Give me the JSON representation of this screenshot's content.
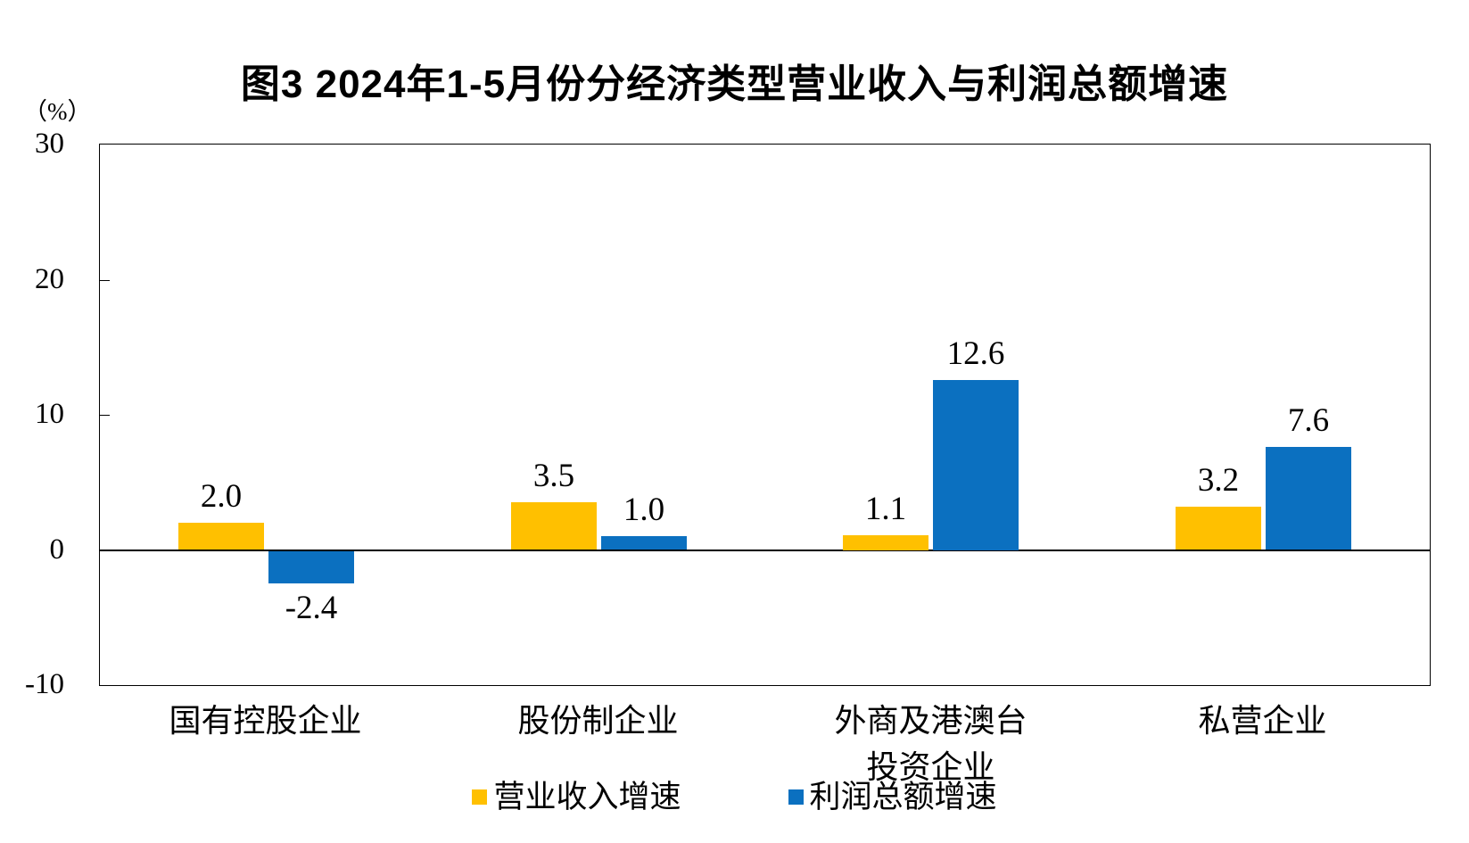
{
  "title": "图3  2024年1-5月份分经济类型营业收入与利润总额增速",
  "unit_label": "（%）",
  "colors": {
    "revenue": "#FFC000",
    "profit": "#0B70C0",
    "axis": "#000000",
    "background": "#FFFFFF"
  },
  "chart_data": {
    "type": "bar",
    "title": "图3  2024年1-5月份分经济类型营业收入与利润总额增速",
    "ylabel": "（%）",
    "categories": [
      "国有控股企业",
      "股份制企业",
      "外商及港澳台\n投资企业",
      "私营企业"
    ],
    "series": [
      {
        "name": "营业收入增速",
        "color": "#FFC000",
        "values": [
          2.0,
          3.5,
          1.1,
          3.2
        ]
      },
      {
        "name": "利润总额增速",
        "color": "#0B70C0",
        "values": [
          -2.4,
          1.0,
          12.6,
          7.6
        ]
      }
    ],
    "value_labels": {
      "营业收入增速": [
        "2.0",
        "3.5",
        "1.1",
        "3.2"
      ],
      "利润总额增速": [
        "-2.4",
        "1.0",
        "12.6",
        "7.6"
      ]
    },
    "ylim": [
      -10,
      30
    ],
    "yticks": [
      30,
      20,
      10,
      0,
      -10
    ],
    "grid": false,
    "legend_position": "bottom"
  }
}
